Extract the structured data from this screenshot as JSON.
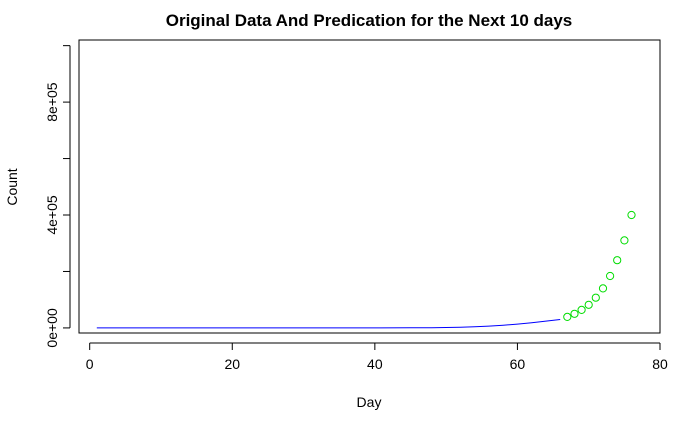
{
  "chart_data": {
    "type": "line",
    "title": "Original Data And Predication for the Next 10 days",
    "xlabel": "Day",
    "ylabel": "Count",
    "xlim": [
      -1.5,
      80
    ],
    "ylim": [
      -18000,
      1020000
    ],
    "xticks": [
      0,
      20,
      40,
      60,
      80
    ],
    "xtick_labels": [
      "0",
      "20",
      "40",
      "60",
      "80"
    ],
    "yticks": [
      0,
      200000,
      400000,
      600000,
      800000,
      1000000
    ],
    "ytick_labels": [
      "0e+00",
      "",
      "4e+05",
      "",
      "8e+05",
      ""
    ],
    "grid": false,
    "legend": "none",
    "series": [
      {
        "style": "line",
        "color": "#0000ff",
        "x": [
          1,
          5,
          10,
          15,
          20,
          25,
          30,
          35,
          40,
          45,
          48,
          50,
          52,
          54,
          56,
          58,
          60,
          62,
          64,
          66
        ],
        "y": [
          0,
          0,
          0,
          0,
          0,
          0,
          0,
          10,
          50,
          300,
          800,
          1500,
          2500,
          4000,
          6500,
          9500,
          13500,
          18500,
          24000,
          30000
        ]
      },
      {
        "style": "points",
        "color": "#00dd00",
        "x": [
          67,
          68,
          69,
          70,
          71,
          72,
          73,
          74,
          75,
          76
        ],
        "y": [
          39000,
          50000,
          64000,
          82000,
          107000,
          140000,
          184000,
          240000,
          310000,
          400000
        ]
      }
    ]
  }
}
